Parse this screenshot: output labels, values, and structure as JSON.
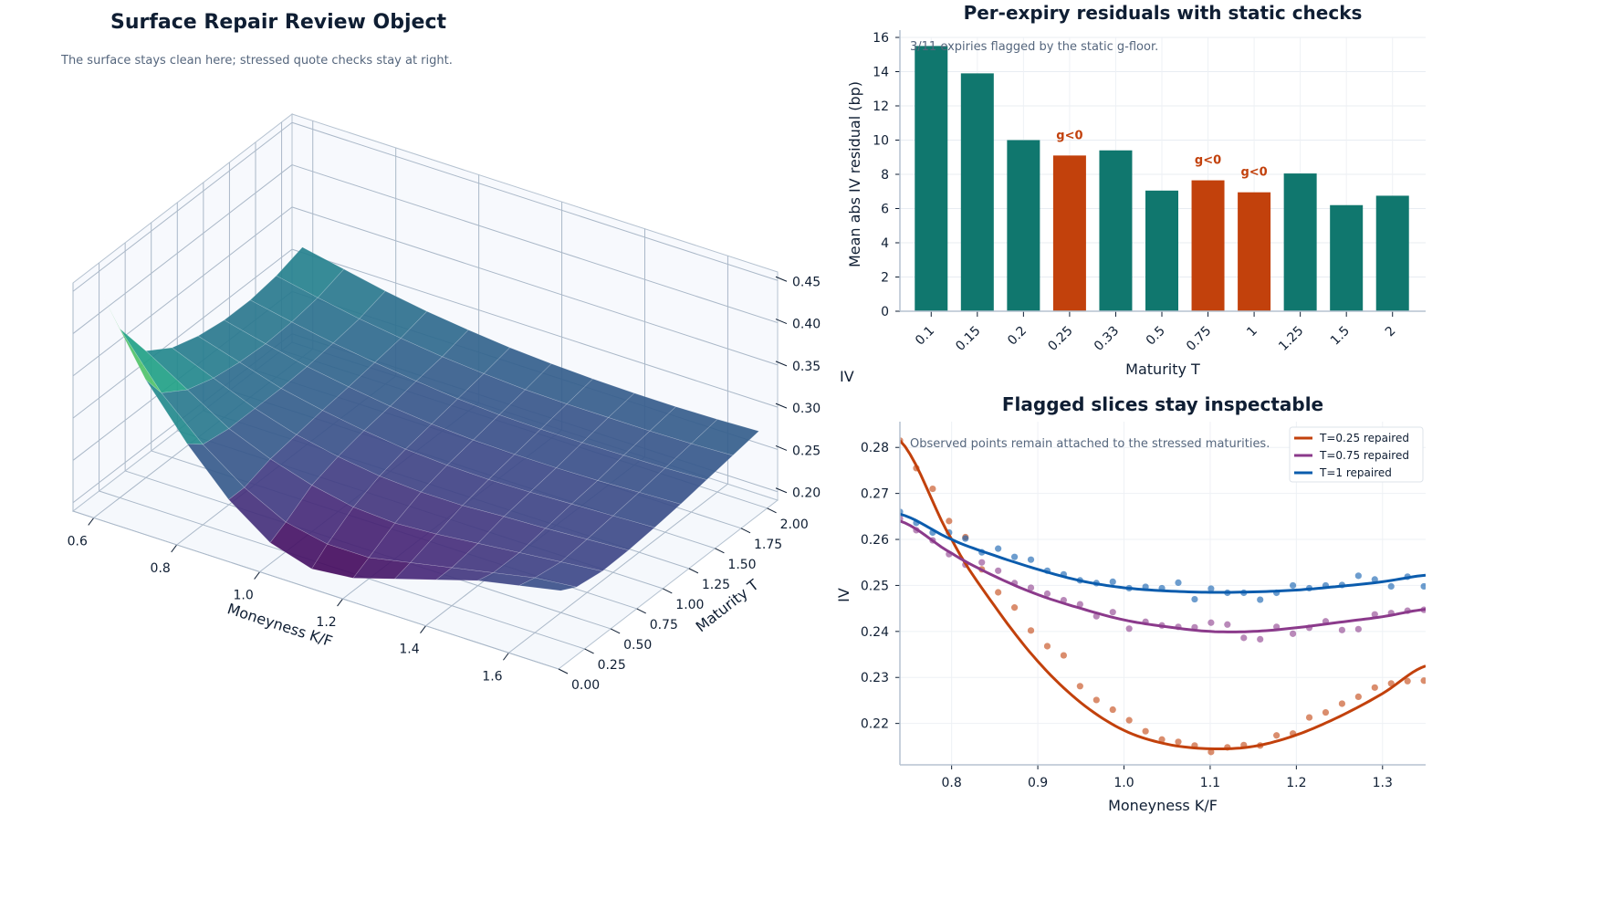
{
  "chart_data": [
    {
      "type": "surface",
      "title": "Surface Repair Review Object",
      "subtitle": "The surface stays clean here; stressed quote checks stay at right.",
      "xlabel": "Moneyness K/F",
      "ylabel": "Maturity T",
      "zlabel": "IV",
      "xticks": [
        "0.6",
        "0.8",
        "1.0",
        "1.2",
        "1.4",
        "1.6"
      ],
      "yticks": [
        "0.00",
        "0.25",
        "0.50",
        "0.75",
        "1.00",
        "1.25",
        "1.50",
        "1.75",
        "2.00"
      ],
      "zticks": [
        "0.20",
        "0.25",
        "0.30",
        "0.35",
        "0.40",
        "0.45"
      ],
      "colormap": "viridis",
      "moneyness": [
        0.6,
        0.7,
        0.8,
        0.9,
        1.0,
        1.1,
        1.2,
        1.3,
        1.4,
        1.5,
        1.6,
        1.7
      ],
      "maturity": [
        0.1,
        0.25,
        0.5,
        0.75,
        1,
        1.25,
        1.5,
        1.75,
        2
      ],
      "iv": [
        [
          0.44,
          0.36,
          0.3,
          0.25,
          0.215,
          0.2,
          0.205,
          0.22,
          0.235,
          0.25,
          0.26,
          0.27
        ],
        [
          0.39,
          0.33,
          0.285,
          0.25,
          0.225,
          0.215,
          0.215,
          0.225,
          0.235,
          0.245,
          0.255,
          0.26
        ],
        [
          0.34,
          0.31,
          0.28,
          0.26,
          0.245,
          0.235,
          0.232,
          0.235,
          0.24,
          0.245,
          0.25,
          0.255
        ],
        [
          0.32,
          0.3,
          0.28,
          0.265,
          0.255,
          0.248,
          0.245,
          0.245,
          0.248,
          0.25,
          0.253,
          0.256
        ],
        [
          0.31,
          0.295,
          0.28,
          0.27,
          0.262,
          0.256,
          0.253,
          0.252,
          0.253,
          0.255,
          0.257,
          0.259
        ],
        [
          0.305,
          0.293,
          0.282,
          0.274,
          0.267,
          0.262,
          0.259,
          0.258,
          0.258,
          0.259,
          0.261,
          0.263
        ],
        [
          0.305,
          0.295,
          0.286,
          0.279,
          0.273,
          0.268,
          0.265,
          0.264,
          0.264,
          0.265,
          0.266,
          0.268
        ],
        [
          0.31,
          0.3,
          0.291,
          0.284,
          0.278,
          0.274,
          0.271,
          0.27,
          0.27,
          0.27,
          0.271,
          0.273
        ],
        [
          0.32,
          0.31,
          0.3,
          0.292,
          0.286,
          0.281,
          0.278,
          0.276,
          0.275,
          0.275,
          0.276,
          0.278
        ]
      ]
    },
    {
      "type": "bar",
      "title": "Per-expiry residuals with static checks",
      "annotation": "3/11 expiries flagged by the static g-floor.",
      "xlabel": "Maturity T",
      "ylabel": "Mean abs IV residual (bp)",
      "ylim": [
        0,
        16
      ],
      "yticks": [
        "0",
        "2",
        "4",
        "6",
        "8",
        "10",
        "12",
        "14",
        "16"
      ],
      "grid": true,
      "categories": [
        "0.1",
        "0.15",
        "0.2",
        "0.25",
        "0.33",
        "0.5",
        "0.75",
        "1",
        "1.25",
        "1.5",
        "2"
      ],
      "values": [
        15.5,
        13.9,
        10.0,
        9.1,
        9.4,
        7.05,
        7.65,
        6.95,
        8.05,
        6.2,
        6.75
      ],
      "flagged": [
        false,
        false,
        false,
        true,
        false,
        false,
        true,
        true,
        false,
        false,
        false
      ],
      "flag_label": "g<0",
      "colors": {
        "ok": "#10776e",
        "flagged": "#c2410c"
      }
    },
    {
      "type": "line",
      "title": "Flagged slices stay inspectable",
      "annotation": "Observed points remain attached to the stressed maturities.",
      "xlabel": "Moneyness K/F",
      "ylabel": "IV",
      "xlim": [
        0.74,
        1.35
      ],
      "ylim": [
        0.211,
        0.2856
      ],
      "grid": true,
      "legend": "top-right",
      "xticks": [
        "0.8",
        "0.9",
        "1.0",
        "1.1",
        "1.2",
        "1.3"
      ],
      "yticks": [
        "0.22",
        "0.23",
        "0.24",
        "0.25",
        "0.26",
        "0.27",
        "0.28"
      ],
      "curve_x": [
        0.74,
        0.8,
        0.85,
        0.9,
        0.95,
        1.0,
        1.05,
        1.1,
        1.15,
        1.2,
        1.25,
        1.3,
        1.35
      ],
      "obs_x_start": 0.74,
      "obs_x_step": 0.019,
      "series": [
        {
          "name": "T=0.25 repaired",
          "color": "#c2410c",
          "curve": [
            0.2815,
            0.26,
            0.2455,
            0.2335,
            0.2245,
            0.2185,
            0.2155,
            0.2145,
            0.215,
            0.2175,
            0.2215,
            0.2265,
            0.2325
          ],
          "observed": [
            0.2815,
            0.2755,
            0.271,
            0.264,
            0.2605,
            0.2535,
            0.2485,
            0.2452,
            0.2402,
            0.2368,
            0.2348,
            0.2281,
            0.2251,
            0.223,
            0.2207,
            0.2183,
            0.2165,
            0.216,
            0.2152,
            0.2138,
            0.2148,
            0.2153,
            0.2152,
            0.2174,
            0.2178,
            0.2213,
            0.2224,
            0.2243,
            0.2258,
            0.2278,
            0.2287,
            0.2292,
            0.2293
          ]
        },
        {
          "name": "T=0.75 repaired",
          "color": "#8b3a8b",
          "curve": [
            0.264,
            0.257,
            0.252,
            0.248,
            0.245,
            0.2425,
            0.241,
            0.24,
            0.24,
            0.2408,
            0.242,
            0.2432,
            0.2448
          ],
          "observed": [
            0.2645,
            0.262,
            0.2598,
            0.2568,
            0.2545,
            0.255,
            0.2532,
            0.2505,
            0.2495,
            0.2482,
            0.2468,
            0.2459,
            0.2433,
            0.2442,
            0.2406,
            0.2421,
            0.2413,
            0.241,
            0.2409,
            0.2419,
            0.2415,
            0.2386,
            0.2383,
            0.241,
            0.2395,
            0.2408,
            0.2422,
            0.2403,
            0.2405,
            0.2437,
            0.244,
            0.2445,
            0.2447
          ]
        },
        {
          "name": "T=1 repaired",
          "color": "#0b5cad",
          "curve": [
            0.2655,
            0.26,
            0.2565,
            0.2535,
            0.251,
            0.2495,
            0.2488,
            0.2485,
            0.2486,
            0.249,
            0.2498,
            0.2508,
            0.2522
          ],
          "observed": [
            0.266,
            0.2636,
            0.2615,
            0.2615,
            0.2602,
            0.2572,
            0.258,
            0.2562,
            0.2556,
            0.2532,
            0.2524,
            0.2511,
            0.2505,
            0.2508,
            0.2494,
            0.2497,
            0.2494,
            0.2506,
            0.247,
            0.2493,
            0.2484,
            0.2484,
            0.2469,
            0.2484,
            0.25,
            0.2494,
            0.25,
            0.2501,
            0.2521,
            0.2513,
            0.2498,
            0.2519,
            0.2498
          ]
        }
      ]
    }
  ]
}
